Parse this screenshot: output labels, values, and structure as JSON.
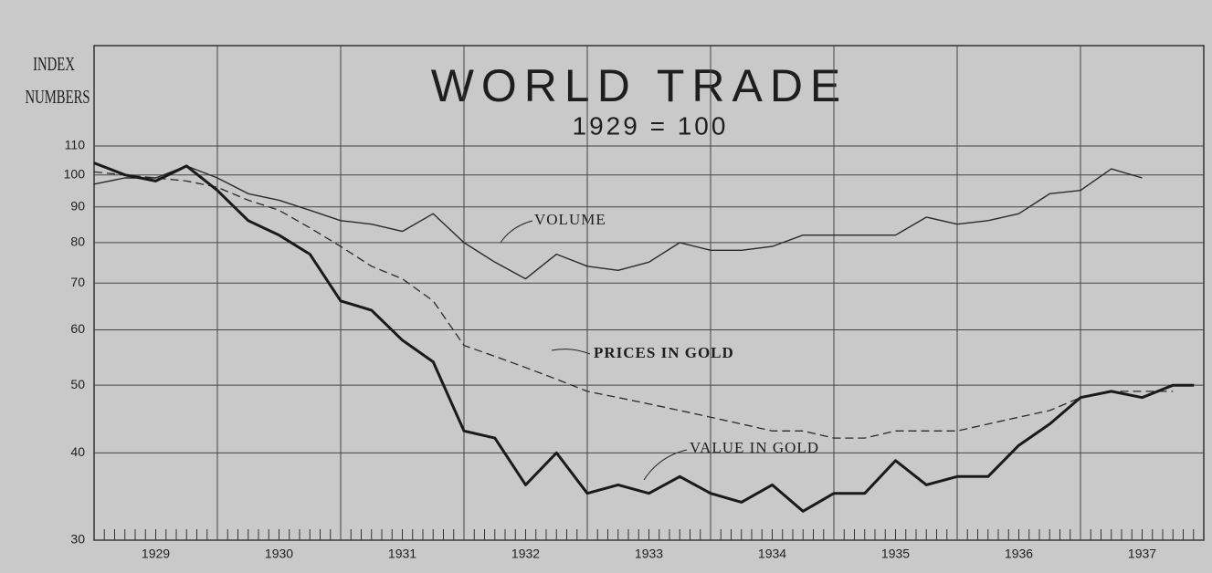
{
  "chart_data": {
    "type": "line",
    "title": "WORLD TRADE",
    "subtitle": "1929 = 100",
    "y_label": "INDEX NUMBERS",
    "categories": [
      "1929",
      "1930",
      "1931",
      "1932",
      "1933",
      "1934",
      "1935",
      "1936",
      "1937"
    ],
    "xlim": [
      1929,
      1938
    ],
    "x": [
      1929.0,
      1929.25,
      1929.5,
      1929.75,
      1930.0,
      1930.25,
      1930.5,
      1930.75,
      1931.0,
      1931.25,
      1931.5,
      1931.75,
      1932.0,
      1932.25,
      1932.5,
      1932.75,
      1933.0,
      1933.25,
      1933.5,
      1933.75,
      1934.0,
      1934.25,
      1934.5,
      1934.75,
      1935.0,
      1935.25,
      1935.5,
      1935.75,
      1936.0,
      1936.25,
      1936.5,
      1936.75,
      1937.0,
      1937.25,
      1937.5,
      1937.75,
      1937.92
    ],
    "series": [
      {
        "name": "VOLUME",
        "color": "#2a2a2a",
        "style": "thin",
        "values": [
          97,
          99,
          99,
          103,
          99,
          94,
          92,
          89,
          86,
          85,
          83,
          88,
          80,
          75,
          71,
          77,
          74,
          73,
          75,
          80,
          78,
          78,
          79,
          82,
          82,
          82,
          82,
          87,
          85,
          86,
          88,
          94,
          95,
          102,
          99,
          null,
          null
        ]
      },
      {
        "name": "PRICES IN GOLD",
        "color": "#2a2a2a",
        "style": "dashed",
        "values": [
          101,
          100,
          99,
          98,
          96,
          92,
          89,
          84,
          79,
          74,
          71,
          66,
          57,
          55,
          53,
          51,
          49,
          48,
          47,
          46,
          45,
          44,
          43,
          43,
          42,
          42,
          43,
          43,
          43,
          44,
          45,
          46,
          48,
          49,
          49,
          49,
          null
        ]
      },
      {
        "name": "VALUE IN GOLD",
        "color": "#1a1a1a",
        "style": "thick",
        "values": [
          104,
          100,
          98,
          103,
          95,
          86,
          82,
          77,
          66,
          64,
          58,
          54,
          43,
          42,
          36,
          40,
          35,
          36,
          35,
          37,
          35,
          34,
          36,
          33,
          35,
          35,
          39,
          36,
          37,
          37,
          41,
          44,
          48,
          49,
          48,
          50,
          50
        ]
      }
    ],
    "log_scale": true,
    "ylim": [
      30,
      110
    ],
    "yticks": [
      30,
      40,
      50,
      60,
      70,
      80,
      90,
      100,
      110
    ],
    "grid": true
  }
}
